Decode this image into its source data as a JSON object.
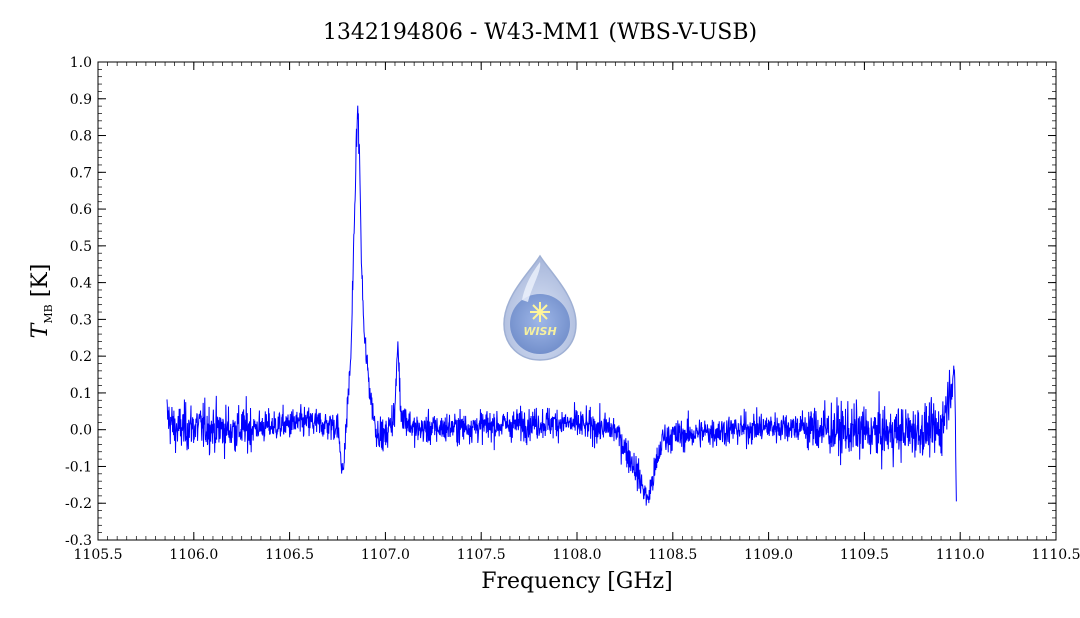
{
  "chart_data": {
    "type": "line",
    "title": "1342194806 - W43-MM1 (WBS-V-USB)",
    "xlabel": "Frequency [GHz]",
    "ylabel": {
      "symbol": "T",
      "subscript": "MB",
      "unit": "[K]"
    },
    "xlim": [
      1105.5,
      1110.5
    ],
    "ylim": [
      -0.3,
      1.0
    ],
    "x_ticks": [
      "1105.5",
      "1106.0",
      "1106.5",
      "1107.0",
      "1107.5",
      "1108.0",
      "1108.5",
      "1109.0",
      "1109.5",
      "1110.0",
      "1110.5"
    ],
    "y_ticks": [
      "-0.3",
      "-0.2",
      "-0.1",
      "0.0",
      "0.1",
      "0.2",
      "0.3",
      "0.4",
      "0.5",
      "0.6",
      "0.7",
      "0.8",
      "0.9",
      "1.0"
    ],
    "series": [
      {
        "color": "#0000ff",
        "x_range": [
          1105.86,
          1109.98
        ],
        "points": [
          [
            1105.86,
            0.04
          ],
          [
            1105.9,
            0.0
          ],
          [
            1106.0,
            0.01
          ],
          [
            1106.2,
            0.0
          ],
          [
            1106.4,
            0.01
          ],
          [
            1106.6,
            0.02
          ],
          [
            1106.75,
            0.01
          ],
          [
            1106.78,
            -0.12
          ],
          [
            1106.8,
            0.05
          ],
          [
            1106.82,
            0.2
          ],
          [
            1106.84,
            0.6
          ],
          [
            1106.855,
            0.88
          ],
          [
            1106.865,
            0.75
          ],
          [
            1106.875,
            0.45
          ],
          [
            1106.89,
            0.25
          ],
          [
            1106.92,
            0.1
          ],
          [
            1106.95,
            0.0
          ],
          [
            1107.0,
            -0.02
          ],
          [
            1107.05,
            0.05
          ],
          [
            1107.065,
            0.24
          ],
          [
            1107.08,
            0.05
          ],
          [
            1107.15,
            0.0
          ],
          [
            1107.5,
            0.01
          ],
          [
            1107.9,
            0.02
          ],
          [
            1108.2,
            0.0
          ],
          [
            1108.3,
            -0.1
          ],
          [
            1108.37,
            -0.19
          ],
          [
            1108.45,
            -0.02
          ],
          [
            1108.8,
            0.0
          ],
          [
            1109.1,
            0.01
          ],
          [
            1109.3,
            0.0
          ],
          [
            1109.6,
            -0.01
          ],
          [
            1109.9,
            0.0
          ],
          [
            1109.97,
            0.17
          ],
          [
            1109.98,
            -0.2
          ]
        ],
        "noise_rms": {
          "low_freq_edge": 0.045,
          "band_1107_1108": 0.03,
          "band_1108_1109": 0.03,
          "high_freq_edge": 0.05
        }
      }
    ]
  },
  "logo": {
    "text": "WISH",
    "colors": {
      "outer": "#b8c6e3",
      "inner": "#7f9bd2",
      "star": "#fff59a",
      "text": "#f5f0a0"
    }
  }
}
